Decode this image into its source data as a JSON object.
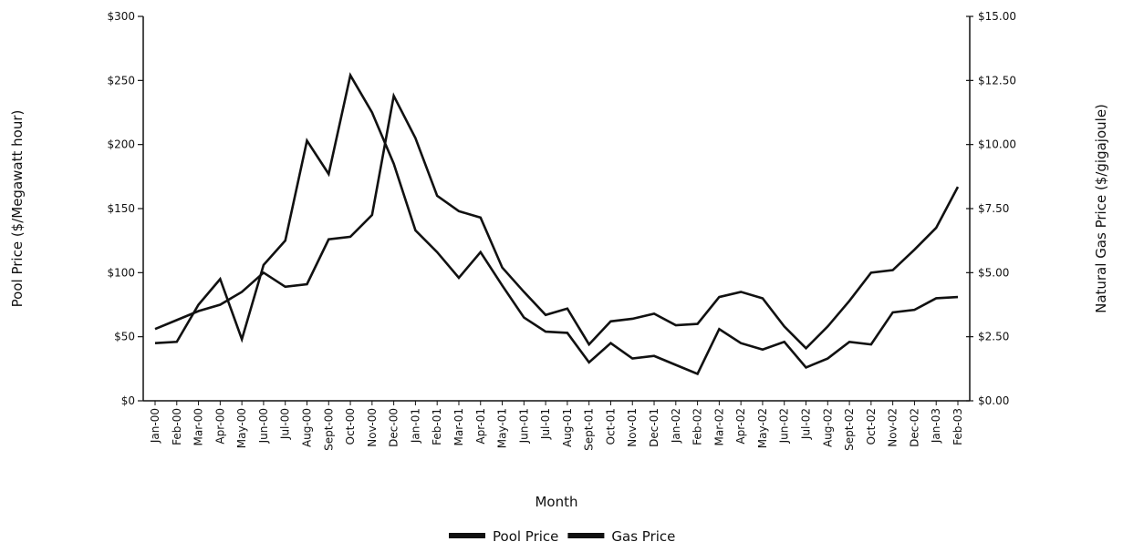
{
  "chart_data": {
    "type": "line",
    "x_label": "Month",
    "y_label": "Pool Price ($/Megawatt hour)",
    "y2_label": "Natural Gas Price ($/gigajoule)",
    "categories": [
      "Jan-00",
      "Feb-00",
      "Mar-00",
      "Apr-00",
      "May-00",
      "Jun-00",
      "Jul-00",
      "Aug-00",
      "Sept-00",
      "Oct-00",
      "Nov-00",
      "Dec-00",
      "Jan-01",
      "Feb-01",
      "Mar-01",
      "Apr-01",
      "May-01",
      "Jun-01",
      "Jul-01",
      "Aug-01",
      "Sept-01",
      "Oct-01",
      "Nov-01",
      "Dec-01",
      "Jan-02",
      "Feb-02",
      "Mar-02",
      "Apr-02",
      "May-02",
      "Jun-02",
      "Jul-02",
      "Aug-02",
      "Sept-02",
      "Oct-02",
      "Nov-02",
      "Dec-02",
      "Jan-03",
      "Feb-03"
    ],
    "series": [
      {
        "name": "Pool Price",
        "color": "#111111",
        "values": [
          45,
          46,
          75,
          95,
          48,
          106,
          125,
          203,
          177,
          254,
          225,
          185,
          133,
          116,
          96,
          116,
          90,
          65,
          54,
          53,
          30,
          45,
          33,
          35,
          28,
          21,
          56,
          45,
          40,
          46,
          26,
          33,
          46,
          44,
          69,
          71,
          80,
          81
        ]
      },
      {
        "name": "Gas Price",
        "color": "#111111",
        "axis": "y2",
        "values": [
          2.8,
          3.15,
          3.5,
          3.75,
          4.25,
          5.0,
          4.45,
          4.55,
          6.3,
          6.4,
          7.25,
          11.9,
          10.25,
          8.0,
          7.4,
          7.15,
          5.2,
          4.25,
          3.35,
          3.6,
          2.2,
          3.1,
          3.2,
          3.4,
          2.95,
          3.0,
          4.05,
          4.25,
          4.0,
          2.9,
          2.05,
          2.9,
          3.9,
          5.0,
          5.1,
          5.9,
          6.75,
          8.35
        ]
      }
    ],
    "ylim": [
      0,
      300
    ],
    "yticks": [
      {
        "value": 0,
        "label": "$0"
      },
      {
        "value": 50,
        "label": "$50"
      },
      {
        "value": 100,
        "label": "$100"
      },
      {
        "value": 150,
        "label": "$150"
      },
      {
        "value": 200,
        "label": "$200"
      },
      {
        "value": 250,
        "label": "$250"
      },
      {
        "value": 300,
        "label": "$300"
      }
    ],
    "y2lim": [
      0,
      15
    ],
    "y2ticks": [
      {
        "value": 0,
        "label": "$0.00"
      },
      {
        "value": 2.5,
        "label": "$2.50"
      },
      {
        "value": 5,
        "label": "$5.00"
      },
      {
        "value": 7.5,
        "label": "$7.50"
      },
      {
        "value": 10,
        "label": "$10.00"
      },
      {
        "value": 12.5,
        "label": "$12.50"
      },
      {
        "value": 15,
        "label": "$15.00"
      }
    ],
    "grid": false,
    "legend": "bottom"
  }
}
